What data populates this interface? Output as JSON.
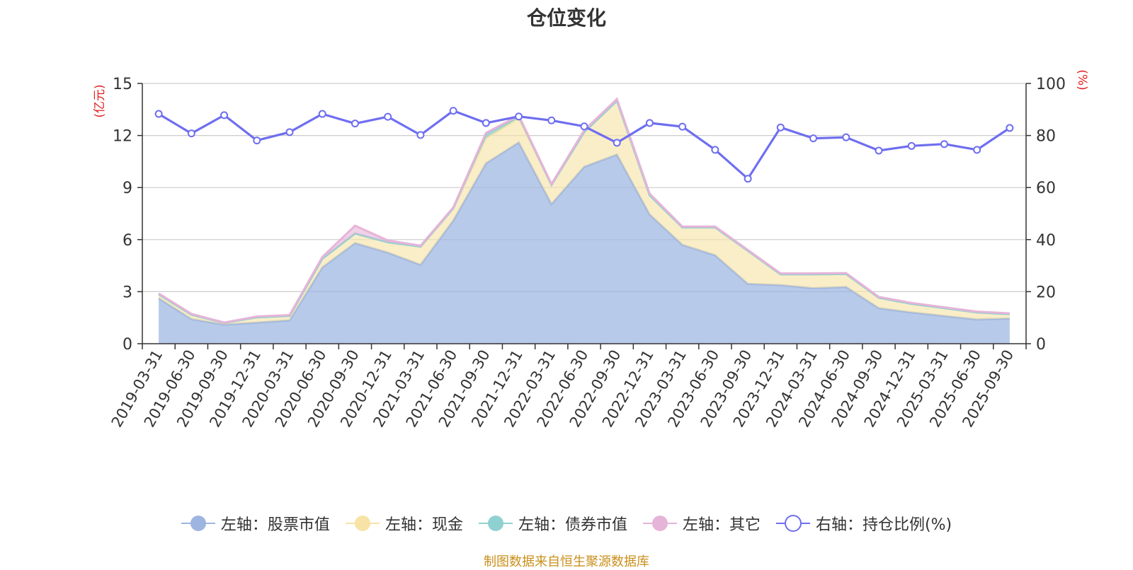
{
  "title": "仓位变化",
  "source_note": "制图数据来自恒生聚源数据库",
  "chart_data": {
    "type": "area",
    "title": "仓位变化",
    "categories": [
      "2019-03-31",
      "2019-06-30",
      "2019-09-30",
      "2019-12-31",
      "2020-03-31",
      "2020-06-30",
      "2020-09-30",
      "2020-12-31",
      "2021-03-31",
      "2021-06-30",
      "2021-09-30",
      "2021-12-31",
      "2022-03-31",
      "2022-06-30",
      "2022-09-30",
      "2022-12-31",
      "2023-03-31",
      "2023-06-30",
      "2023-09-30",
      "2023-12-31",
      "2024-03-31",
      "2024-06-30",
      "2024-09-30",
      "2024-12-31",
      "2025-03-31",
      "2025-06-30",
      "2025-09-30"
    ],
    "left_axis": {
      "label": "(亿元)",
      "ylim": [
        0,
        15
      ],
      "ticks": [
        0,
        3,
        6,
        9,
        12,
        15
      ]
    },
    "right_axis": {
      "label": "(%)",
      "ylim": [
        0,
        100
      ],
      "ticks": [
        0,
        20,
        40,
        60,
        80,
        100
      ]
    },
    "grid": true,
    "legend_position": "bottom",
    "series": [
      {
        "name": "左轴：股票市值",
        "axis": "left",
        "stack": "total",
        "color": "#9db5e0",
        "values": [
          2.62,
          1.42,
          1.1,
          1.22,
          1.35,
          4.4,
          5.8,
          5.25,
          4.55,
          7.1,
          10.4,
          11.6,
          8.05,
          10.2,
          10.9,
          7.45,
          5.7,
          5.1,
          3.45,
          3.38,
          3.2,
          3.27,
          2.05,
          1.8,
          1.6,
          1.4,
          1.45
        ]
      },
      {
        "name": "左轴：现金",
        "axis": "left",
        "stack": "total",
        "color": "#f7e3a6",
        "values": [
          0.23,
          0.25,
          0.1,
          0.3,
          0.25,
          0.5,
          0.55,
          0.6,
          1.05,
          0.7,
          1.45,
          1.4,
          1.1,
          2.0,
          3.1,
          1.1,
          1.0,
          1.6,
          1.9,
          0.62,
          0.8,
          0.75,
          0.6,
          0.5,
          0.45,
          0.4,
          0.25
        ]
      },
      {
        "name": "左轴：债券市值",
        "axis": "left",
        "stack": "total",
        "color": "#8fd1d1",
        "values": [
          0,
          0,
          0,
          0,
          0,
          0,
          0,
          0,
          0,
          0,
          0.2,
          0.1,
          0,
          0,
          0,
          0,
          0,
          0,
          0,
          0,
          0,
          0,
          0,
          0,
          0,
          0,
          0
        ]
      },
      {
        "name": "左轴：其它",
        "axis": "left",
        "stack": "total",
        "color": "#e6b4d8",
        "values": [
          0.05,
          0.05,
          0.02,
          0.05,
          0.05,
          0.1,
          0.45,
          0.1,
          0.05,
          0.05,
          0.1,
          0.05,
          0.05,
          0.1,
          0.1,
          0.1,
          0.05,
          0.05,
          0.05,
          0.05,
          0.05,
          0.05,
          0.05,
          0.05,
          0.05,
          0.05,
          0.05
        ]
      },
      {
        "name": "右轴：持仓比例(%)",
        "axis": "right",
        "type": "line",
        "color": "#6e6ef0",
        "values": [
          88.3,
          80.8,
          87.8,
          78.1,
          81.3,
          88.3,
          84.6,
          87.2,
          80.2,
          89.5,
          84.8,
          87.3,
          85.8,
          83.5,
          77.2,
          84.8,
          83.4,
          74.5,
          63.4,
          83.1,
          78.9,
          79.3,
          74.2,
          76.0,
          76.7,
          74.5,
          82.9
        ]
      }
    ]
  }
}
